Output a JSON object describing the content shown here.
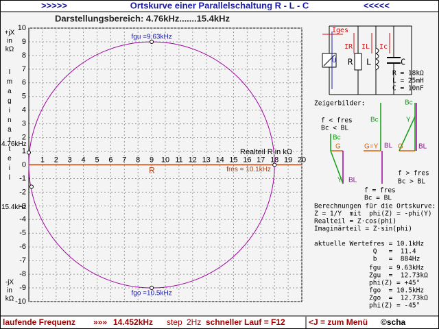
{
  "header": {
    "left": ">>>>>",
    "title": "Ortskurve einer Parallelschaltung R - L - C",
    "right": "<<<<<"
  },
  "range_label": "Darstellungsbereich: 4.76kHz.......15.4kHz",
  "plot": {
    "xlim": [
      0,
      20
    ],
    "ylim": [
      -10,
      10
    ],
    "xticks": [
      1,
      2,
      3,
      4,
      5,
      6,
      7,
      8,
      9,
      10,
      11,
      12,
      13,
      14,
      15,
      16,
      17,
      18,
      19,
      20
    ],
    "yticks": [
      -10,
      -9,
      -8,
      -7,
      -6,
      -5,
      -4,
      -3,
      -2,
      -1,
      0,
      1,
      2,
      3,
      4,
      5,
      6,
      7,
      8,
      9,
      10
    ],
    "x_axis_label": "Realteil R in kΩ",
    "r_label": "R",
    "y_axis_top": [
      "+jX",
      "in",
      "kΩ"
    ],
    "y_axis_middle": "Imaginärteil",
    "y_axis_bottom": [
      "-jX",
      "in",
      "kΩ"
    ],
    "markers": [
      {
        "label": "fgu =9.63kHz",
        "x": 9,
        "y": 9
      },
      {
        "label": "fgo =10.5kHz",
        "x": 9,
        "y": -9
      },
      {
        "label": "fres = 10.1kHz",
        "x": 18,
        "y": 0
      },
      {
        "label": "4.76kHz",
        "x": 0,
        "y": 0.9
      },
      {
        "label": "15.4kHz",
        "x": 0.2,
        "y": -1.6
      }
    ]
  },
  "circuit": {
    "Iges": "Iges",
    "U": "U",
    "IR": "IR",
    "IL": "IL",
    "Ic": "Ic",
    "R": "R",
    "L": "L",
    "C": "C",
    "values": [
      "R = 18kΩ",
      "L = 25mH",
      "C = 10nF"
    ]
  },
  "phasors": {
    "title": "Zeigerbilder:",
    "below": {
      "cond": [
        "f < fres",
        "Bc < BL"
      ],
      "Bc": "Bc",
      "G": "G",
      "Y": "Y",
      "BL": "BL"
    },
    "equal": {
      "cond": [
        "f = fres",
        "Bc = BL"
      ],
      "Bc": "Bc",
      "GY": "G=Y",
      "BL": "BL"
    },
    "above": {
      "cond": [
        "f > fres",
        "Bc > BL"
      ],
      "Bc": "Bc",
      "G": "G",
      "Y": "Y",
      "BL": "BL"
    }
  },
  "calc": [
    "Berechnungen für die Ortskurve:",
    "Z = 1/Y  mit  phi(Z) = -phi(Y)",
    "Realteil = Z·cos(phi)",
    "Imaginärteil = Z·sin(phi)"
  ],
  "current": {
    "label": "aktuelle Werte:",
    "lines": [
      "fres = 10.1kHz",
      " Q   =  11.4",
      " b   =  884Hz",
      "fgu  = 9.63kHz",
      "Zgu  =  12.73kΩ",
      "phi(Z) = +45°",
      "fgo  = 10.5kHz",
      "Zgo  =  12.73kΩ",
      "phi(Z) = -45°"
    ]
  },
  "status": {
    "label": "laufende Frequenz",
    "arrows": "»»»",
    "frequency": "14.452kHz",
    "step_label": "step",
    "step": "2Hz",
    "fast": "schneller Lauf = F12",
    "menu": "<J = zum Menü",
    "copyright": "©scha"
  }
}
